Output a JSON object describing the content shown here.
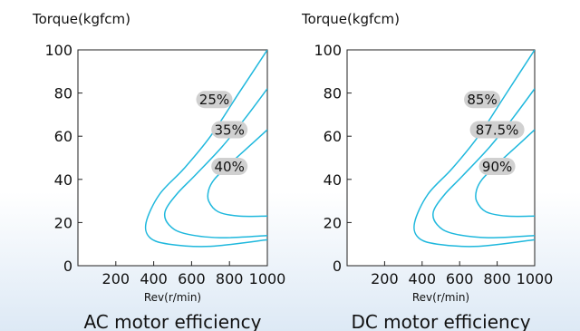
{
  "colors": {
    "curve": "#1fb8dd",
    "pill": "#d0d0d0",
    "axis": "#222222"
  },
  "chart_data": [
    {
      "type": "line",
      "title": "AC motor efficiency",
      "ylabel": "Torque(kgfcm)",
      "xlabel": "Rev(r/min)",
      "xlim": [
        0,
        1000
      ],
      "ylim": [
        0,
        100
      ],
      "x_ticks": [
        "200",
        "400",
        "600",
        "800",
        "1000"
      ],
      "y_ticks": [
        "0",
        "20",
        "40",
        "60",
        "80",
        "100"
      ],
      "series": [
        {
          "name": "25%",
          "points": [
            [
              1000,
              100
            ],
            [
              850,
              80
            ],
            [
              700,
              60
            ],
            [
              560,
              45
            ],
            [
              430,
              33
            ],
            [
              360,
              20
            ],
            [
              380,
              13
            ],
            [
              480,
              10
            ],
            [
              700,
              9
            ],
            [
              1000,
              12
            ]
          ]
        },
        {
          "name": "35%",
          "points": [
            [
              1000,
              82
            ],
            [
              880,
              68
            ],
            [
              760,
              55
            ],
            [
              620,
              42
            ],
            [
              520,
              33
            ],
            [
              460,
              25
            ],
            [
              480,
              19
            ],
            [
              560,
              15
            ],
            [
              750,
              13
            ],
            [
              1000,
              14
            ]
          ]
        },
        {
          "name": "40%",
          "points": [
            [
              1000,
              63
            ],
            [
              900,
              55
            ],
            [
              800,
              47
            ],
            [
              720,
              40
            ],
            [
              690,
              35
            ],
            [
              690,
              30
            ],
            [
              740,
              25
            ],
            [
              850,
              23
            ],
            [
              1000,
              23
            ]
          ]
        }
      ],
      "labels": [
        {
          "text": "25%",
          "x": 720,
          "y": 77
        },
        {
          "text": "35%",
          "x": 800,
          "y": 63
        },
        {
          "text": "40%",
          "x": 800,
          "y": 46
        }
      ]
    },
    {
      "type": "line",
      "title": "DC motor efficiency",
      "ylabel": "Torque(kgfcm)",
      "xlabel": "Rev(r/min)",
      "xlim": [
        0,
        1000
      ],
      "ylim": [
        0,
        100
      ],
      "x_ticks": [
        "200",
        "400",
        "600",
        "800",
        "1000"
      ],
      "y_ticks": [
        "0",
        "20",
        "40",
        "60",
        "80",
        "100"
      ],
      "series": [
        {
          "name": "85%",
          "points": [
            [
              1000,
              100
            ],
            [
              850,
              80
            ],
            [
              700,
              60
            ],
            [
              560,
              45
            ],
            [
              430,
              33
            ],
            [
              360,
              20
            ],
            [
              380,
              13
            ],
            [
              480,
              10
            ],
            [
              700,
              9
            ],
            [
              1000,
              12
            ]
          ]
        },
        {
          "name": "87.5%",
          "points": [
            [
              1000,
              82
            ],
            [
              880,
              68
            ],
            [
              760,
              55
            ],
            [
              620,
              42
            ],
            [
              520,
              33
            ],
            [
              460,
              25
            ],
            [
              480,
              19
            ],
            [
              560,
              15
            ],
            [
              750,
              13
            ],
            [
              1000,
              14
            ]
          ]
        },
        {
          "name": "90%",
          "points": [
            [
              1000,
              63
            ],
            [
              900,
              55
            ],
            [
              800,
              47
            ],
            [
              720,
              40
            ],
            [
              690,
              35
            ],
            [
              690,
              30
            ],
            [
              740,
              25
            ],
            [
              850,
              23
            ],
            [
              1000,
              23
            ]
          ]
        }
      ],
      "labels": [
        {
          "text": "85%",
          "x": 720,
          "y": 77
        },
        {
          "text": "87.5%",
          "x": 800,
          "y": 63
        },
        {
          "text": "90%",
          "x": 800,
          "y": 46
        }
      ]
    }
  ]
}
